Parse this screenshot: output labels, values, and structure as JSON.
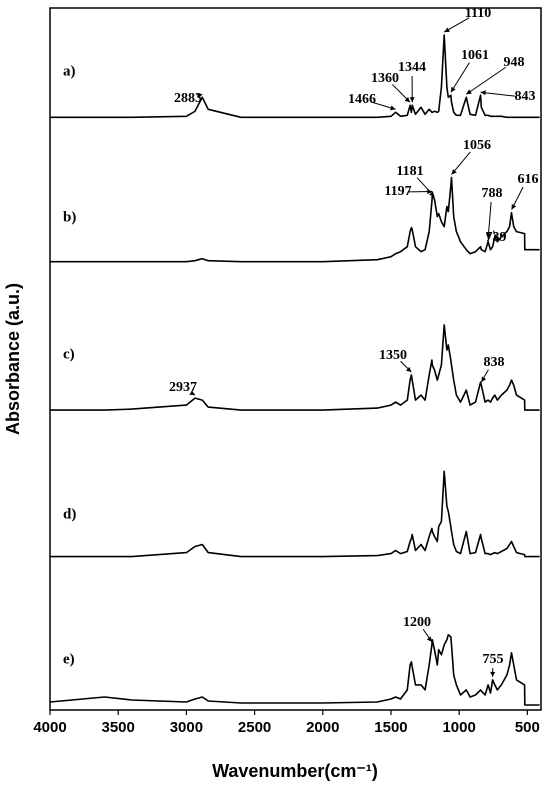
{
  "chart_data": {
    "type": "line",
    "x_label": "Wavenumber(cm⁻¹)",
    "y_label": "Absorbance (a.u.)",
    "xlim": [
      4000,
      400
    ],
    "ylim": [
      0,
      7
    ],
    "xticks": [
      4000,
      3500,
      3000,
      2500,
      2000,
      1500,
      1000,
      500
    ],
    "x": [
      4000,
      3600,
      3400,
      3000,
      2937,
      2883,
      2840,
      2600,
      2000,
      1600,
      1500,
      1466,
      1430,
      1380,
      1360,
      1350,
      1344,
      1320,
      1280,
      1250,
      1220,
      1200,
      1197,
      1181,
      1160,
      1150,
      1130,
      1110,
      1090,
      1080,
      1061,
      1056,
      1040,
      1020,
      990,
      948,
      920,
      880,
      843,
      838,
      810,
      788,
      770,
      755,
      739,
      720,
      690,
      650,
      630,
      616,
      600,
      580,
      520,
      519,
      410
    ],
    "series": [
      {
        "name": "a)",
        "color": "#000000",
        "peaks": [
          2883,
          1466,
          1360,
          1344,
          1110,
          1061,
          948,
          843
        ],
        "values": [
          5.91,
          5.91,
          5.91,
          5.92,
          5.97,
          6.11,
          5.99,
          5.91,
          5.91,
          5.91,
          5.92,
          5.96,
          5.92,
          5.93,
          6.03,
          5.96,
          6.03,
          5.94,
          6.01,
          5.94,
          5.99,
          5.96,
          5.96,
          5.97,
          5.96,
          5.97,
          6.21,
          6.73,
          6.21,
          6.11,
          6.13,
          6.06,
          5.96,
          5.93,
          5.93,
          6.11,
          5.94,
          5.93,
          6.13,
          6.01,
          5.93,
          5.93,
          5.92,
          5.92,
          5.92,
          5.92,
          5.92,
          5.91,
          5.91,
          5.91,
          5.91,
          5.91,
          5.91,
          5.91,
          5.91
        ]
      },
      {
        "name": "b)",
        "color": "#000000",
        "peaks": [
          1197,
          1181,
          1056,
          788,
          739,
          616
        ],
        "values": [
          4.47,
          4.47,
          4.47,
          4.47,
          4.48,
          4.5,
          4.48,
          4.47,
          4.47,
          4.49,
          4.52,
          4.55,
          4.57,
          4.62,
          4.77,
          4.81,
          4.79,
          4.62,
          4.57,
          4.59,
          4.77,
          5.07,
          5.14,
          5.09,
          4.92,
          4.95,
          4.87,
          4.82,
          5.02,
          4.97,
          5.22,
          5.31,
          4.92,
          4.77,
          4.67,
          4.59,
          4.55,
          4.57,
          4.62,
          4.59,
          4.57,
          4.67,
          4.59,
          4.62,
          4.72,
          4.67,
          4.72,
          4.77,
          4.82,
          4.96,
          4.82,
          4.77,
          4.75,
          4.59,
          4.59
        ]
      },
      {
        "name": "c)",
        "color": "#000000",
        "peaks": [
          2937,
          1350,
          838
        ],
        "values": [
          2.99,
          2.99,
          3.0,
          3.04,
          3.11,
          3.09,
          3.02,
          2.99,
          2.99,
          3.01,
          3.04,
          3.07,
          3.04,
          3.09,
          3.29,
          3.34,
          3.29,
          3.09,
          3.14,
          3.09,
          3.34,
          3.49,
          3.44,
          3.39,
          3.29,
          3.34,
          3.44,
          3.84,
          3.59,
          3.64,
          3.49,
          3.44,
          3.29,
          3.14,
          3.07,
          3.19,
          3.04,
          3.07,
          3.27,
          3.24,
          3.07,
          3.09,
          3.07,
          3.11,
          3.14,
          3.09,
          3.14,
          3.19,
          3.24,
          3.29,
          3.24,
          3.14,
          3.09,
          2.99,
          2.99
        ]
      },
      {
        "name": "d)",
        "color": "#000000",
        "peaks": [],
        "values": [
          1.53,
          1.53,
          1.53,
          1.57,
          1.63,
          1.65,
          1.57,
          1.53,
          1.53,
          1.54,
          1.56,
          1.59,
          1.56,
          1.58,
          1.68,
          1.71,
          1.75,
          1.59,
          1.65,
          1.59,
          1.73,
          1.81,
          1.78,
          1.73,
          1.68,
          1.83,
          1.88,
          2.38,
          2.03,
          1.98,
          1.83,
          1.78,
          1.65,
          1.58,
          1.56,
          1.78,
          1.56,
          1.57,
          1.75,
          1.71,
          1.56,
          1.56,
          1.55,
          1.56,
          1.57,
          1.56,
          1.58,
          1.61,
          1.65,
          1.68,
          1.63,
          1.57,
          1.55,
          1.53,
          1.53
        ]
      },
      {
        "name": "e)",
        "color": "#000000",
        "peaks": [
          1200,
          755
        ],
        "values": [
          0.08,
          0.13,
          0.1,
          0.08,
          0.11,
          0.13,
          0.09,
          0.07,
          0.07,
          0.08,
          0.11,
          0.13,
          0.11,
          0.2,
          0.45,
          0.48,
          0.43,
          0.25,
          0.25,
          0.2,
          0.45,
          0.65,
          0.7,
          0.6,
          0.45,
          0.6,
          0.55,
          0.65,
          0.7,
          0.75,
          0.73,
          0.65,
          0.35,
          0.25,
          0.15,
          0.2,
          0.13,
          0.15,
          0.2,
          0.19,
          0.15,
          0.25,
          0.17,
          0.3,
          0.25,
          0.2,
          0.25,
          0.35,
          0.45,
          0.57,
          0.45,
          0.3,
          0.25,
          0.05,
          0.05
        ]
      }
    ]
  }
}
